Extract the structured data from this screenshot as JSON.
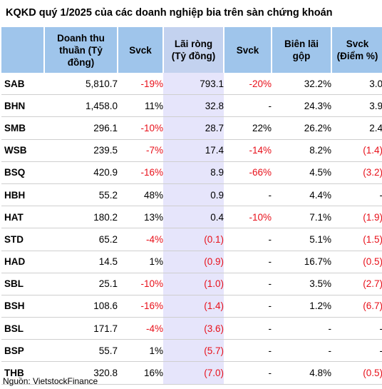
{
  "title": "KQKD quý 1/2025 của các doanh nghiệp bia trên sàn chứng khoán",
  "headers": {
    "ticker": "",
    "revenue": "Doanh thu thuần (Tỷ đồng)",
    "rev_yoy": "Svck",
    "net_profit": "Lãi ròng (Tỷ đồng)",
    "np_yoy": "Svck",
    "gross_margin": "Biên lãi gộp",
    "gm_yoy": "Svck (Điểm %)"
  },
  "rows": [
    {
      "ticker": "SAB",
      "revenue": "5,810.7",
      "rev_yoy": "-19%",
      "net_profit": "793.1",
      "np_yoy": "-20%",
      "gross_margin": "32.2%",
      "gm_yoy": "3.0"
    },
    {
      "ticker": "BHN",
      "revenue": "1,458.0",
      "rev_yoy": "11%",
      "net_profit": "32.8",
      "np_yoy": "-",
      "gross_margin": "24.3%",
      "gm_yoy": "3.9"
    },
    {
      "ticker": "SMB",
      "revenue": "296.1",
      "rev_yoy": "-10%",
      "net_profit": "28.7",
      "np_yoy": "22%",
      "gross_margin": "26.2%",
      "gm_yoy": "2.4"
    },
    {
      "ticker": "WSB",
      "revenue": "239.5",
      "rev_yoy": "-7%",
      "net_profit": "17.4",
      "np_yoy": "-14%",
      "gross_margin": "8.2%",
      "gm_yoy": "(1.4)"
    },
    {
      "ticker": "BSQ",
      "revenue": "420.9",
      "rev_yoy": "-16%",
      "net_profit": "8.9",
      "np_yoy": "-66%",
      "gross_margin": "4.5%",
      "gm_yoy": "(3.2)"
    },
    {
      "ticker": "HBH",
      "revenue": "55.2",
      "rev_yoy": "48%",
      "net_profit": "0.9",
      "np_yoy": "-",
      "gross_margin": "4.4%",
      "gm_yoy": "-"
    },
    {
      "ticker": "HAT",
      "revenue": "180.2",
      "rev_yoy": "13%",
      "net_profit": "0.4",
      "np_yoy": "-10%",
      "gross_margin": "7.1%",
      "gm_yoy": "(1.9)"
    },
    {
      "ticker": "STD",
      "revenue": "65.2",
      "rev_yoy": "-4%",
      "net_profit": "(0.1)",
      "np_yoy": "-",
      "gross_margin": "5.1%",
      "gm_yoy": "(1.5)"
    },
    {
      "ticker": "HAD",
      "revenue": "14.5",
      "rev_yoy": "1%",
      "net_profit": "(0.9)",
      "np_yoy": "-",
      "gross_margin": "16.7%",
      "gm_yoy": "(0.5)"
    },
    {
      "ticker": "SBL",
      "revenue": "25.1",
      "rev_yoy": "-10%",
      "net_profit": "(1.0)",
      "np_yoy": "-",
      "gross_margin": "3.5%",
      "gm_yoy": "(2.7)"
    },
    {
      "ticker": "BSH",
      "revenue": "108.6",
      "rev_yoy": "-16%",
      "net_profit": "(1.4)",
      "np_yoy": "-",
      "gross_margin": "1.2%",
      "gm_yoy": "(6.7)"
    },
    {
      "ticker": "BSL",
      "revenue": "171.7",
      "rev_yoy": "-4%",
      "net_profit": "(3.6)",
      "np_yoy": "-",
      "gross_margin": "-",
      "gm_yoy": "-"
    },
    {
      "ticker": "BSP",
      "revenue": "55.7",
      "rev_yoy": "1%",
      "net_profit": "(5.7)",
      "np_yoy": "-",
      "gross_margin": "-",
      "gm_yoy": "-"
    },
    {
      "ticker": "THB",
      "revenue": "320.8",
      "rev_yoy": "16%",
      "net_profit": "(7.0)",
      "np_yoy": "-",
      "gross_margin": "4.8%",
      "gm_yoy": "(0.5)"
    }
  ],
  "source": "Nguồn: VietstockFinance",
  "colors": {
    "header": "#9fc5eb",
    "highlight_header": "#c3d2ef",
    "highlight_cell": "#e6e5fb",
    "negative": "#e8101a"
  }
}
